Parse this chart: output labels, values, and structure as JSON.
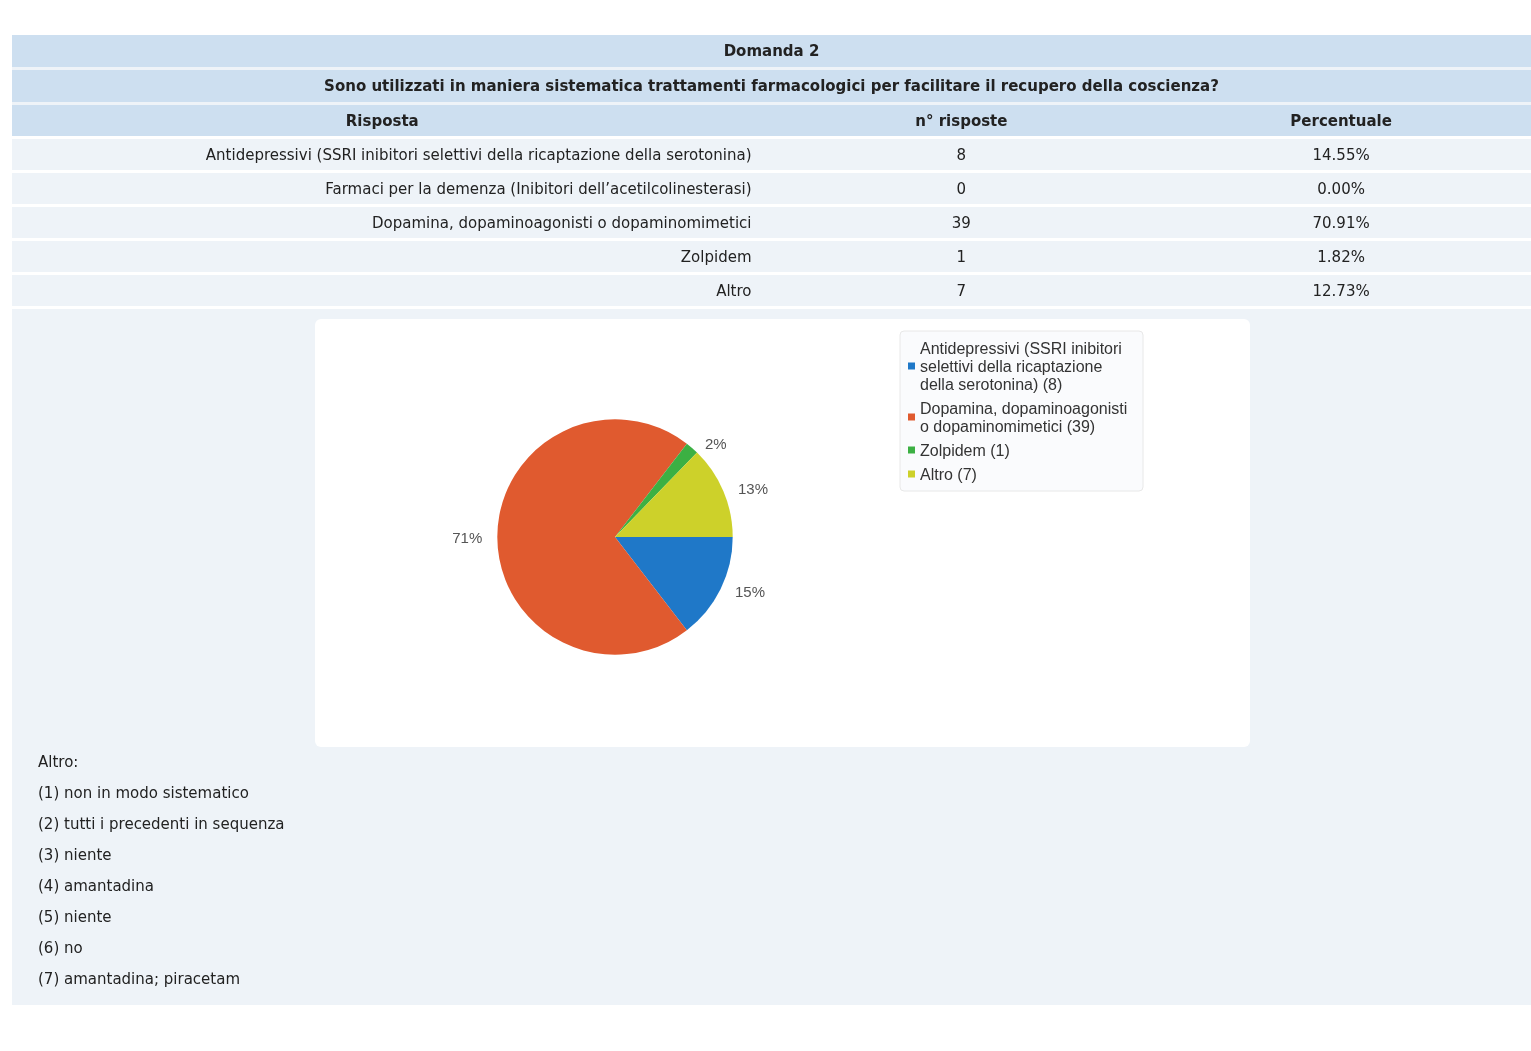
{
  "chart_data": [
    {
      "type": "other",
      "title": "Domanda 2",
      "subtitle": "Sono utilizzati in maniera sistematica  trattamenti farmacologici per facilitare il recupero della coscienza?",
      "annotations": [
        "Risposta",
        "n° risposte",
        "Percentuale",
        "Antidepressivi (SSRI inibitori selettivi della ricaptazione della serotonina)",
        "8",
        "14.55%",
        "Farmaci per la demenza (Inibitori dell’acetilcolinesterasi)",
        "0",
        "0.00%",
        "Dopamina, dopaminoagonisti o dopaminomimetici",
        "39",
        "70.91%",
        "Zolpidem",
        "1",
        "1.82%",
        "Altro",
        "7",
        "12.73%"
      ]
    },
    {
      "type": "pie",
      "categories": [
        "Antidepressivi (SSRI inibitori selettivi della ricaptazione della serotonina) (8)",
        "Dopamina, dopaminoagonisti o dopaminomimetici (39)",
        "Zolpidem (1)",
        "Altro (7)"
      ],
      "values": [
        14.55,
        70.91,
        1.82,
        12.73
      ],
      "colors": [
        "#1f78c8",
        "#e05a2f",
        "#3cb043",
        "#cdd12a"
      ],
      "value_labels": [
        "15%",
        "71%",
        "2%",
        "13%"
      ],
      "legend": "right",
      "annotations": [
        "Altro:",
        "(1) non in modo sistematico",
        "(2) tutti i precedenti in sequenza",
        "(3) niente",
        "(4) amantadina",
        "(5) niente",
        "(6) no",
        "(7) amantadina; piracetam"
      ]
    }
  ]
}
